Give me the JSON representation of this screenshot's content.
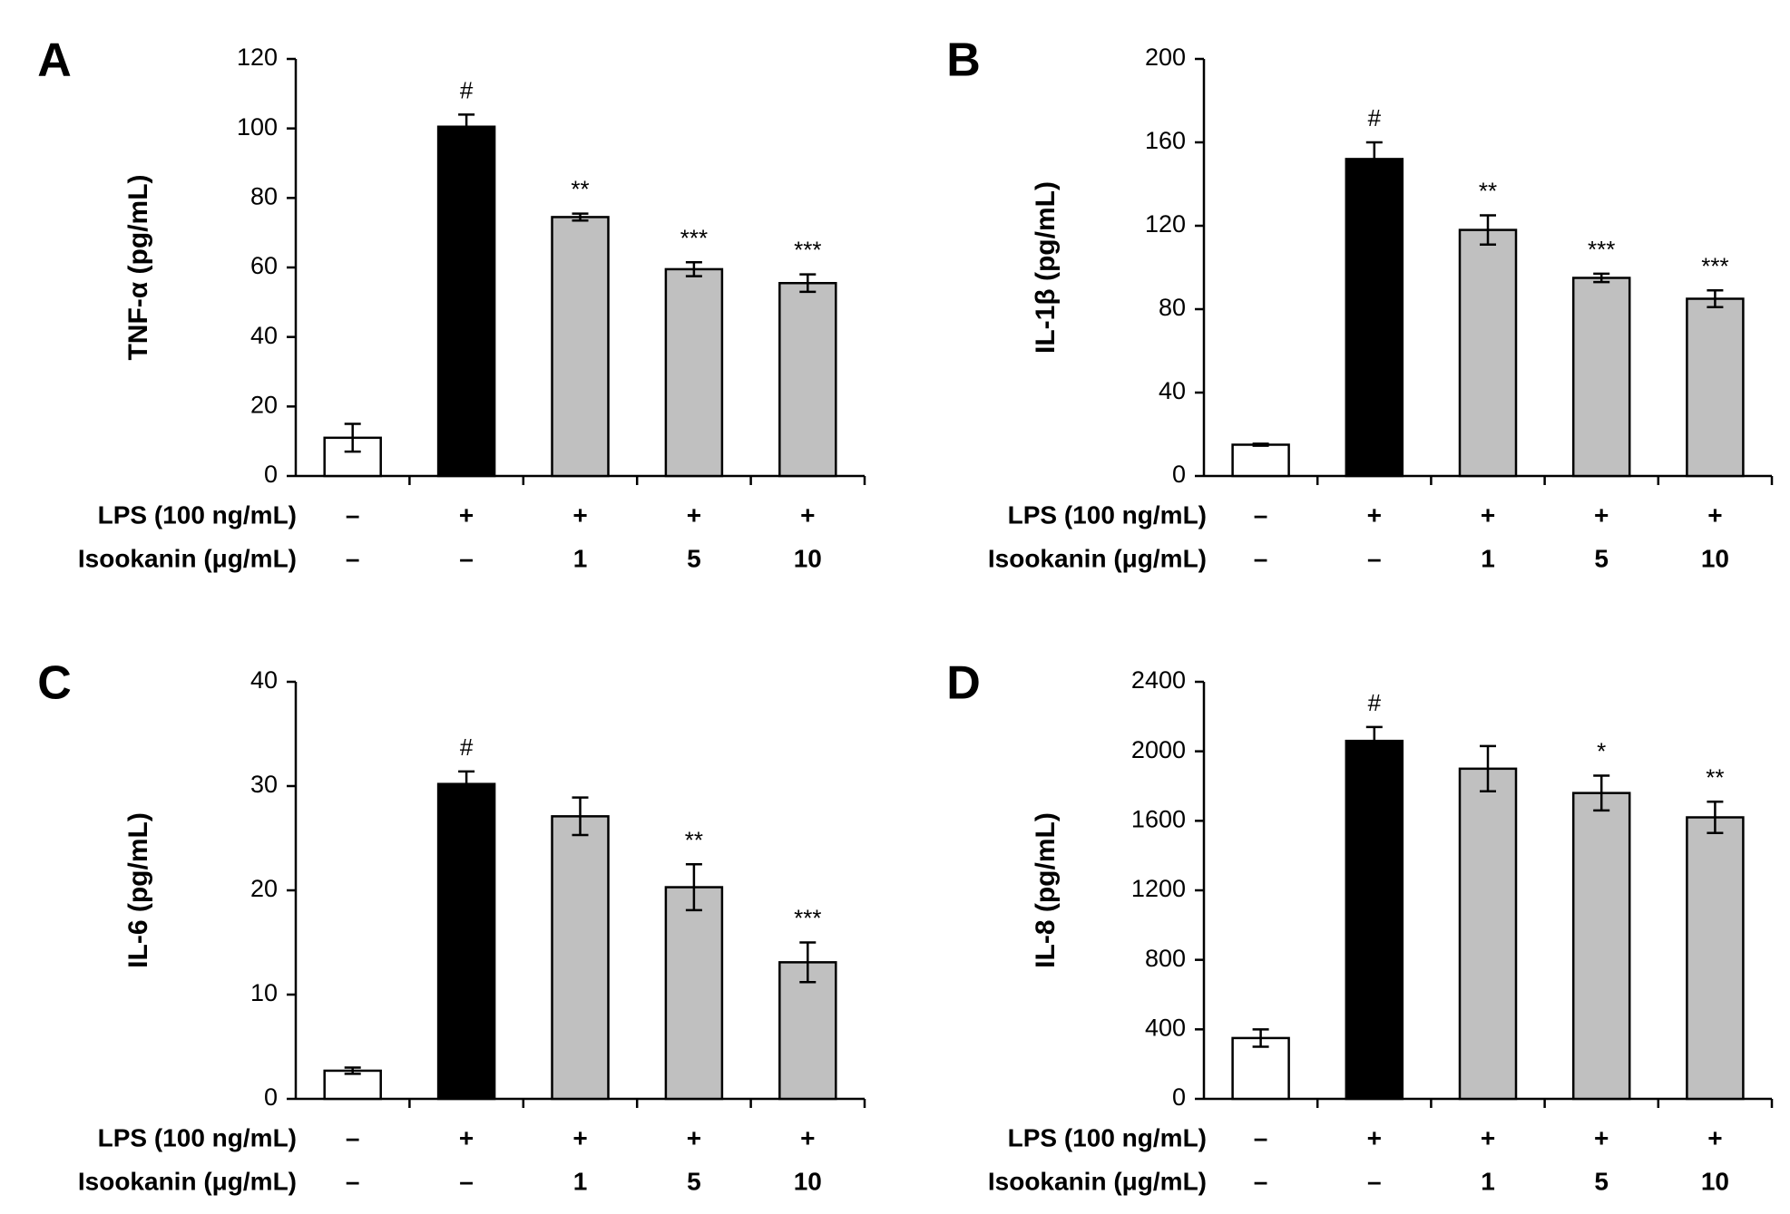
{
  "conditions": {
    "lps_label": "LPS (100 ng/mL)",
    "isokanin_label": "Isookanin (μg/mL)",
    "lps": [
      "–",
      "+",
      "+",
      "+",
      "+"
    ],
    "isokanin": [
      "–",
      "–",
      "1",
      "5",
      "10"
    ]
  },
  "colors": {
    "control": "#ffffff",
    "lps_only": "#000000",
    "treated": "#c0c0c0",
    "stroke": "#000000"
  },
  "chart_data": [
    {
      "panel": "A",
      "type": "bar",
      "ylabel": "TNF-α (pg/mL)",
      "ylim": [
        0,
        120
      ],
      "yticks": [
        0,
        20,
        40,
        60,
        80,
        100,
        120
      ],
      "values": [
        11,
        100.5,
        74.5,
        59.5,
        55.5
      ],
      "errors": [
        4,
        3.5,
        1,
        2,
        2.5
      ],
      "significance": [
        "",
        "#",
        "**",
        "***",
        "***"
      ]
    },
    {
      "panel": "B",
      "type": "bar",
      "ylabel": "IL-1β (pg/mL)",
      "ylim": [
        0,
        200
      ],
      "yticks": [
        0,
        40,
        80,
        120,
        160,
        200
      ],
      "values": [
        15,
        152,
        118,
        95,
        85
      ],
      "errors": [
        0.5,
        8,
        7,
        2,
        4
      ],
      "significance": [
        "",
        "#",
        "**",
        "***",
        "***"
      ]
    },
    {
      "panel": "C",
      "type": "bar",
      "ylabel": "IL-6 (pg/mL)",
      "ylim": [
        0,
        40
      ],
      "yticks": [
        0,
        10,
        20,
        30,
        40
      ],
      "values": [
        2.7,
        30.2,
        27.1,
        20.3,
        13.1
      ],
      "errors": [
        0.3,
        1.2,
        1.8,
        2.2,
        1.9
      ],
      "significance": [
        "",
        "#",
        "",
        "**",
        "***"
      ]
    },
    {
      "panel": "D",
      "type": "bar",
      "ylabel": "IL-8 (pg/mL)",
      "ylim": [
        0,
        2400
      ],
      "yticks": [
        0,
        400,
        800,
        1200,
        1600,
        2000,
        2400
      ],
      "values": [
        350,
        2060,
        1900,
        1760,
        1620
      ],
      "errors": [
        50,
        80,
        130,
        100,
        90
      ],
      "significance": [
        "",
        "#",
        "",
        "*",
        "**"
      ]
    }
  ]
}
